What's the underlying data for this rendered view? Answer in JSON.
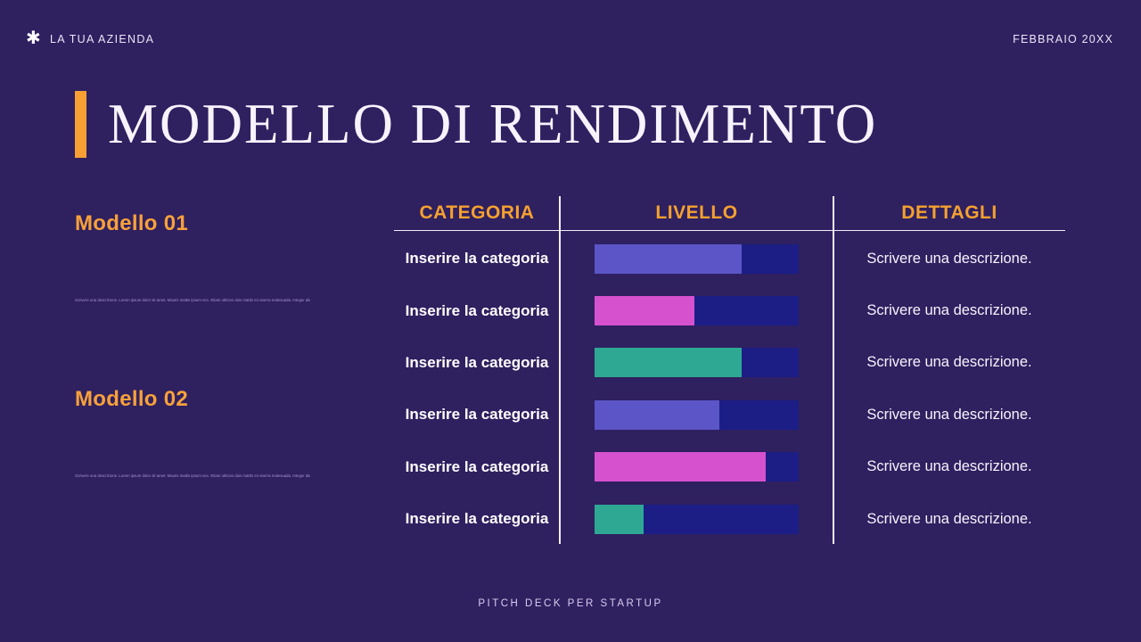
{
  "header": {
    "company": "LA TUA AZIENDA",
    "date": "FEBBRAIO 20XX",
    "logo_glyph": "✱"
  },
  "title": "MODELLO DI RENDIMENTO",
  "models": [
    {
      "heading": "Modello 01",
      "body": "Scrivere una descrizione. Lorem ipsum dolor sit amet. Mauris mattis ipsum nec. Etiam ultrices duis mattis mi viverra malesuada. Integer aliquam cursus vulputate."
    },
    {
      "heading": "Modello 02",
      "body": "Scrivere una descrizione. Lorem ipsum dolor sit amet. Mauris mattis ipsum nec. Etiam ultrices duis mattis mi viverra malesuada. Integer aliquam cursus vulputate."
    }
  ],
  "table": {
    "columns": [
      "CATEGORIA",
      "LIVELLO",
      "DETTAGLI"
    ],
    "rows": [
      {
        "category": "Inserire la categoria",
        "level_percent": 72,
        "bar_color": "#5b55c7",
        "details": "Scrivere una descrizione."
      },
      {
        "category": "Inserire la categoria",
        "level_percent": 49,
        "bar_color": "#d551ce",
        "details": "Scrivere una descrizione."
      },
      {
        "category": "Inserire la categoria",
        "level_percent": 72,
        "bar_color": "#2ea893",
        "details": "Scrivere una descrizione."
      },
      {
        "category": "Inserire la categoria",
        "level_percent": 61,
        "bar_color": "#5b55c7",
        "details": "Scrivere una descrizione."
      },
      {
        "category": "Inserire la categoria",
        "level_percent": 84,
        "bar_color": "#d551ce",
        "details": "Scrivere una descrizione."
      },
      {
        "category": "Inserire la categoria",
        "level_percent": 24,
        "bar_color": "#2ea893",
        "details": "Scrivere una descrizione."
      }
    ],
    "bar_track_color": "#1c1e86"
  },
  "footer": "PITCH DECK PER STARTUP",
  "colors": {
    "background": "#2f2060",
    "accent_orange": "#f8a033",
    "divider_white": "#f2eefa"
  }
}
